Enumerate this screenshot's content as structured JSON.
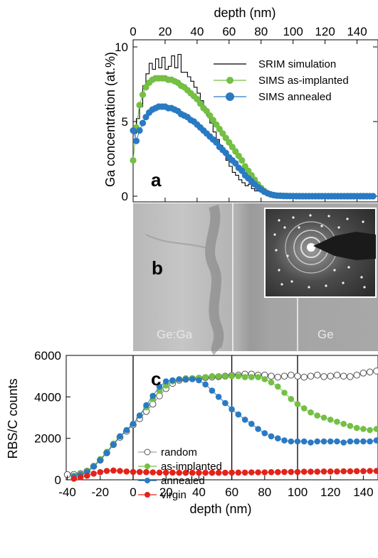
{
  "chart_data": [
    {
      "panel": "a",
      "type": "line",
      "xlabel": "depth (nm)",
      "ylabel": "Ga concentration (at.%)",
      "xlim": [
        0,
        150
      ],
      "ylim": [
        0,
        10.5
      ],
      "x_ticks": [
        "0",
        "20",
        "40",
        "60",
        "80",
        "100",
        "120",
        "140"
      ],
      "y_ticks": [
        "0",
        "5",
        "10"
      ],
      "legend_position": "top-right",
      "series": [
        {
          "name": "SRIM simulation",
          "style": "step",
          "color": "#000000",
          "x": [
            0,
            2,
            4,
            6,
            8,
            10,
            12,
            14,
            16,
            18,
            20,
            22,
            24,
            26,
            28,
            30,
            32,
            34,
            36,
            38,
            40,
            42,
            44,
            46,
            48,
            50,
            52,
            54,
            56,
            58,
            60,
            62,
            64,
            66,
            68,
            70,
            72,
            74,
            76,
            78,
            80,
            82,
            84,
            86,
            88,
            90,
            92,
            94,
            96
          ],
          "y": [
            4.2,
            5.2,
            6.0,
            7.4,
            8.2,
            8.9,
            8.5,
            9.2,
            8.6,
            9.3,
            8.5,
            8.7,
            9.4,
            8.6,
            9.5,
            8.3,
            8.3,
            8.0,
            7.7,
            7.3,
            6.9,
            6.4,
            5.9,
            5.4,
            4.9,
            4.3,
            3.8,
            3.4,
            2.9,
            2.4,
            2.0,
            1.6,
            1.4,
            1.1,
            0.9,
            0.7,
            0.8,
            0.5,
            0.35,
            0.5,
            0.3,
            0.2,
            0.2,
            0.1,
            0.08,
            0.05,
            0.03,
            0.02,
            0.0
          ]
        },
        {
          "name": "SIMS as-implanted",
          "color": "#74bf44",
          "x": [
            0,
            2,
            4,
            6,
            8,
            10,
            12,
            14,
            16,
            18,
            20,
            22,
            24,
            26,
            28,
            30,
            32,
            34,
            36,
            38,
            40,
            42,
            44,
            46,
            48,
            50,
            52,
            54,
            56,
            58,
            60,
            62,
            64,
            66,
            68,
            70,
            72,
            74,
            76,
            78,
            80,
            82,
            84,
            86,
            88,
            90,
            92,
            94,
            96,
            98,
            100,
            102,
            104,
            106,
            108,
            110,
            112,
            114,
            116,
            118,
            120,
            122,
            124,
            126,
            128,
            130,
            132,
            134,
            136,
            138,
            140,
            142,
            144,
            146,
            148,
            150
          ],
          "y": [
            2.4,
            4.6,
            6.1,
            6.8,
            7.3,
            7.6,
            7.8,
            7.9,
            7.9,
            7.9,
            7.9,
            7.8,
            7.8,
            7.7,
            7.6,
            7.4,
            7.3,
            7.1,
            6.9,
            6.7,
            6.5,
            6.2,
            5.9,
            5.7,
            5.4,
            5.1,
            4.8,
            4.5,
            4.2,
            3.9,
            3.6,
            3.3,
            3.0,
            2.7,
            2.4,
            2.0,
            1.7,
            1.4,
            1.1,
            0.8,
            0.55,
            0.35,
            0.2,
            0.12,
            0.07,
            0.04,
            0.03,
            0.02,
            0.02,
            0.01,
            0.01,
            0.01,
            0.01,
            0.0,
            0.0,
            0.0,
            0.0,
            0.0,
            0.0,
            0.0,
            0.0,
            0.0,
            0.0,
            0.0,
            0.0,
            0.0,
            0.0,
            0.0,
            0.0,
            0.0,
            0.0,
            0.0,
            0.0,
            0.0,
            0.0,
            0.0
          ]
        },
        {
          "name": "SIMS annealed",
          "color": "#2a7ac3",
          "x": [
            0,
            2,
            4,
            6,
            8,
            10,
            12,
            14,
            16,
            18,
            20,
            22,
            24,
            26,
            28,
            30,
            32,
            34,
            36,
            38,
            40,
            42,
            44,
            46,
            48,
            50,
            52,
            54,
            56,
            58,
            60,
            62,
            64,
            66,
            68,
            70,
            72,
            74,
            76,
            78,
            80,
            82,
            84,
            86,
            88,
            90,
            92,
            94,
            96,
            98,
            100,
            102,
            104,
            106,
            108,
            110,
            112,
            114,
            116,
            118,
            120,
            122,
            124,
            126,
            128,
            130,
            132,
            134,
            136,
            138,
            140,
            142,
            144,
            146,
            148,
            150
          ],
          "y": [
            4.4,
            3.7,
            4.4,
            4.9,
            5.3,
            5.6,
            5.8,
            5.9,
            6.0,
            6.0,
            6.0,
            5.9,
            5.9,
            5.8,
            5.7,
            5.5,
            5.4,
            5.3,
            5.1,
            5.0,
            4.8,
            4.6,
            4.4,
            4.2,
            4.0,
            3.8,
            3.6,
            3.3,
            3.1,
            2.9,
            2.6,
            2.4,
            2.2,
            1.9,
            1.7,
            1.4,
            1.2,
            1.0,
            0.8,
            0.6,
            0.45,
            0.3,
            0.2,
            0.12,
            0.07,
            0.04,
            0.03,
            0.02,
            0.01,
            0.01,
            0.01,
            0.0,
            0.0,
            0.0,
            0.0,
            0.0,
            0.0,
            0.0,
            0.0,
            0.0,
            0.0,
            0.0,
            0.0,
            0.0,
            0.0,
            0.0,
            0.0,
            0.0,
            0.0,
            0.0,
            0.0,
            0.0,
            0.0,
            0.0,
            0.0,
            0.0
          ]
        }
      ]
    },
    {
      "panel": "c",
      "type": "scatter",
      "xlabel": "depth (nm)",
      "ylabel": "RBS/C counts",
      "xlim": [
        -40,
        150
      ],
      "ylim": [
        0,
        6000
      ],
      "x_ticks": [
        "-40",
        "-20",
        "0",
        "20",
        "40",
        "60",
        "80",
        "100",
        "120",
        "140"
      ],
      "y_ticks": [
        "0",
        "2000",
        "4000",
        "6000"
      ],
      "vertical_lines_at": [
        0,
        60,
        100
      ],
      "legend_position": "bottom-left",
      "series": [
        {
          "name": "random",
          "color": "#ffffff",
          "x": [
            -40,
            -36,
            -32,
            -28,
            -24,
            -20,
            -16,
            -12,
            -8,
            -4,
            0,
            4,
            8,
            12,
            16,
            20,
            24,
            28,
            32,
            36,
            40,
            44,
            48,
            52,
            56,
            60,
            64,
            68,
            72,
            76,
            80,
            84,
            88,
            92,
            96,
            100,
            104,
            108,
            112,
            116,
            120,
            124,
            128,
            132,
            136,
            140,
            144,
            148
          ],
          "y": [
            250,
            260,
            300,
            420,
            650,
            950,
            1300,
            1700,
            2050,
            2350,
            2650,
            2950,
            3300,
            3650,
            4050,
            4400,
            4650,
            4800,
            4850,
            4880,
            4900,
            4930,
            4960,
            4980,
            5000,
            5030,
            5050,
            5100,
            5100,
            5050,
            5050,
            5000,
            4950,
            5000,
            5050,
            5000,
            4950,
            5000,
            5050,
            4980,
            5000,
            5050,
            5000,
            4980,
            5050,
            5150,
            5200,
            5250
          ]
        },
        {
          "name": "as-implanted",
          "color": "#74bf44",
          "x": [
            -36,
            -32,
            -28,
            -24,
            -20,
            -16,
            -12,
            -8,
            -4,
            0,
            4,
            8,
            12,
            16,
            20,
            24,
            28,
            32,
            36,
            40,
            44,
            48,
            52,
            56,
            60,
            64,
            68,
            72,
            76,
            80,
            84,
            88,
            92,
            96,
            100,
            104,
            108,
            112,
            116,
            120,
            124,
            128,
            132,
            136,
            140,
            144,
            148
          ],
          "y": [
            200,
            280,
            420,
            680,
            1000,
            1350,
            1750,
            2100,
            2400,
            2700,
            3100,
            3500,
            3900,
            4300,
            4550,
            4750,
            4850,
            4900,
            4900,
            4920,
            4950,
            5000,
            5000,
            5000,
            5000,
            5000,
            4950,
            4950,
            4950,
            4850,
            4700,
            4500,
            4200,
            3900,
            3650,
            3450,
            3250,
            3100,
            3000,
            2900,
            2800,
            2700,
            2600,
            2500,
            2450,
            2400,
            2450
          ]
        },
        {
          "name": "annealed",
          "color": "#2a7ac3",
          "x": [
            -36,
            -32,
            -28,
            -24,
            -20,
            -16,
            -12,
            -8,
            -4,
            0,
            4,
            8,
            12,
            16,
            20,
            24,
            28,
            32,
            36,
            40,
            44,
            48,
            52,
            56,
            60,
            64,
            68,
            72,
            76,
            80,
            84,
            88,
            92,
            96,
            100,
            104,
            108,
            112,
            116,
            120,
            124,
            128,
            132,
            136,
            140,
            144,
            148
          ],
          "y": [
            150,
            230,
            380,
            640,
            950,
            1300,
            1700,
            2100,
            2400,
            2700,
            3100,
            3600,
            4050,
            4500,
            4750,
            4800,
            4850,
            4850,
            4850,
            4800,
            4600,
            4300,
            4000,
            3700,
            3400,
            3150,
            2900,
            2700,
            2450,
            2250,
            2100,
            2000,
            1900,
            1850,
            1850,
            1850,
            1800,
            1850,
            1850,
            1850,
            1850,
            1800,
            1850,
            1850,
            1850,
            1850,
            1900
          ]
        },
        {
          "name": "virgin",
          "color": "#e2231a",
          "x": [
            -36,
            -32,
            -28,
            -24,
            -20,
            -16,
            -12,
            -8,
            -4,
            0,
            4,
            8,
            12,
            16,
            20,
            24,
            28,
            32,
            36,
            40,
            44,
            48,
            52,
            56,
            60,
            64,
            68,
            72,
            76,
            80,
            84,
            88,
            92,
            96,
            100,
            104,
            108,
            112,
            116,
            120,
            124,
            128,
            132,
            136,
            140,
            144,
            148
          ],
          "y": [
            50,
            120,
            200,
            300,
            370,
            430,
            450,
            430,
            400,
            380,
            380,
            370,
            360,
            350,
            350,
            350,
            340,
            340,
            340,
            340,
            340,
            340,
            340,
            340,
            350,
            350,
            350,
            360,
            360,
            360,
            370,
            370,
            380,
            380,
            380,
            390,
            390,
            390,
            400,
            400,
            400,
            410,
            410,
            420,
            420,
            430,
            430
          ]
        }
      ]
    }
  ],
  "tem": {
    "panel_label": "b",
    "left_label": "Ge:Ga",
    "right_label": "Ge"
  },
  "colors": {
    "srim": "#000000",
    "as_implanted": "#74bf44",
    "annealed": "#2a7ac3",
    "virgin": "#e2231a"
  }
}
